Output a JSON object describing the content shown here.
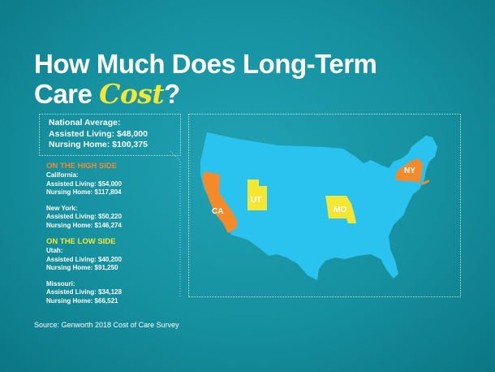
{
  "title": {
    "line1": "How Much Does Long-Term",
    "line2_prefix": "Care ",
    "line2_accent": "Cost",
    "line2_suffix": "?"
  },
  "national": {
    "heading": "National Average:",
    "assisted": "Assisted Living: $48,000",
    "nursing": "Nursing Home:  $100,375"
  },
  "high_side": {
    "heading": "ON THE HIGH SIDE",
    "states": [
      {
        "name": "California:",
        "assisted": "Assisted Living: $54,000",
        "nursing": "Nursing Home: $117,804"
      },
      {
        "name": "New York:",
        "assisted": "Assisted Living: $50,220",
        "nursing": "Nursing Home: $146,274"
      }
    ]
  },
  "low_side": {
    "heading": "ON THE LOW SIDE",
    "states": [
      {
        "name": "Utah:",
        "assisted": "Assisted Living:  $40,200",
        "nursing": "Nursing Home:  $91,250"
      },
      {
        "name": "Missouri:",
        "assisted": "Assisted Living: $34,128",
        "nursing": "Nursing Home:  $66,521"
      }
    ]
  },
  "source": "Source: Genworth 2018 Cost of Care Survey",
  "map_labels": {
    "ca": "CA",
    "ut": "UT",
    "mo": "MO",
    "ny": "NY"
  },
  "colors": {
    "background": "#15909f",
    "land": "#2ac3f0",
    "high": "#f58a2b",
    "low": "#f4e631",
    "text": "#ffffff"
  }
}
